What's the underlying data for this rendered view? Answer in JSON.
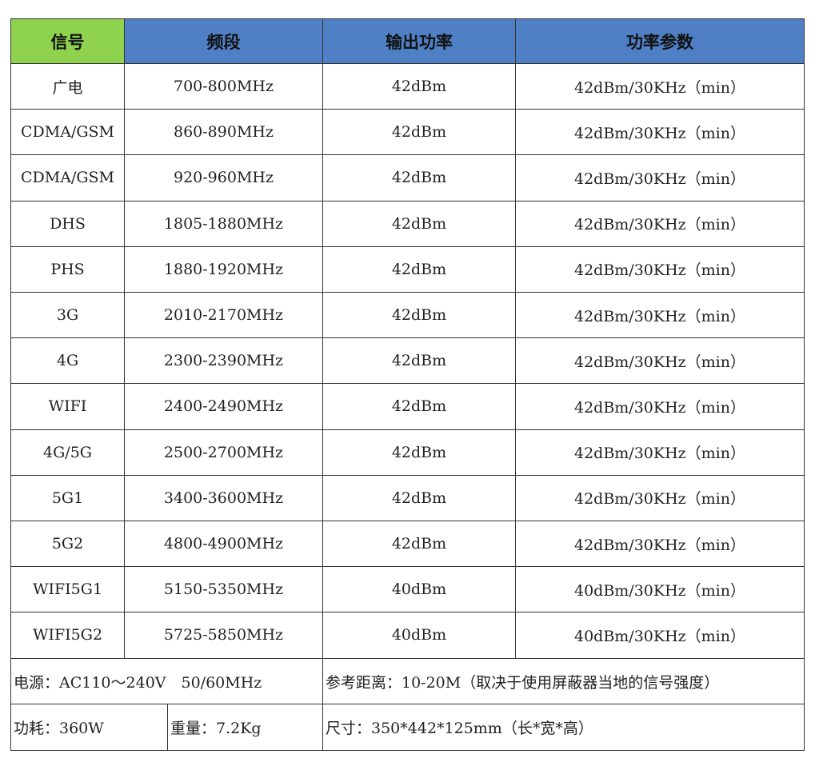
{
  "table": {
    "headers": [
      "信号",
      "频段",
      "输出功率",
      "功率参数"
    ],
    "header_colors": [
      "#8fd24e",
      "#4f7fc4",
      "#4f7fc4",
      "#4f7fc4"
    ],
    "rows": [
      [
        "广电",
        "700-800MHz",
        "42dBm",
        "42dBm/30KHz（min）"
      ],
      [
        "CDMA/GSM",
        "860-890MHz",
        "42dBm",
        "42dBm/30KHz（min）"
      ],
      [
        "CDMA/GSM",
        "920-960MHz",
        "42dBm",
        "42dBm/30KHz（min）"
      ],
      [
        "DHS",
        "1805-1880MHz",
        "42dBm",
        "42dBm/30KHz（min）"
      ],
      [
        "PHS",
        "1880-1920MHz",
        "42dBm",
        "42dBm/30KHz（min）"
      ],
      [
        "3G",
        "2010-2170MHz",
        "42dBm",
        "42dBm/30KHz（min）"
      ],
      [
        "4G",
        "2300-2390MHz",
        "42dBm",
        "42dBm/30KHz（min）"
      ],
      [
        "WIFI",
        "2400-2490MHz",
        "42dBm",
        "42dBm/30KHz（min）"
      ],
      [
        "4G/5G",
        "2500-2700MHz",
        "42dBm",
        "42dBm/30KHz（min）"
      ],
      [
        "5G1",
        "3400-3600MHz",
        "42dBm",
        "42dBm/30KHz（min）"
      ],
      [
        "5G2",
        "4800-4900MHz",
        "42dBm",
        "42dBm/30KHz（min）"
      ],
      [
        "WIFI5G1",
        "5150-5350MHz",
        "40dBm",
        "40dBm/30KHz（min）"
      ],
      [
        "WIFI5G2",
        "5725-5850MHz",
        "40dBm",
        "40dBm/30KHz（min）"
      ]
    ]
  },
  "footer": {
    "power_supply": "电源：AC110～240V　50/60MHz",
    "reference_distance": "参考距离：10-20M（取决于使用屏蔽器当地的信号强度）",
    "power_consumption": "功耗：360W",
    "weight": "重量：7.2Kg",
    "dimensions": "尺寸：350*442*125mm（长*宽*高）"
  }
}
